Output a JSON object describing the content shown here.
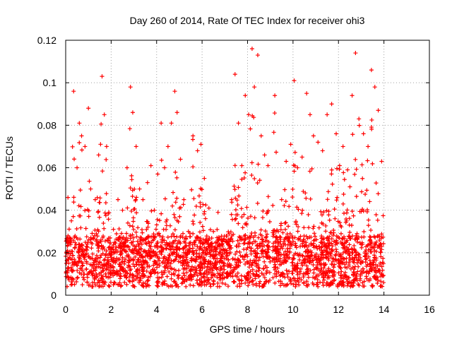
{
  "chart_data": {
    "type": "scatter",
    "title": "Day 260 of 2014, Rate Of TEC Index for receiver ohi3",
    "xlabel": "GPS time / hours",
    "ylabel": "ROTI / TECUs",
    "xlim": [
      0,
      16
    ],
    "ylim": [
      0,
      0.12
    ],
    "xticks": [
      0,
      2,
      4,
      6,
      8,
      10,
      12,
      14,
      16
    ],
    "yticks": [
      0,
      0.02,
      0.04,
      0.06,
      0.08,
      0.1,
      0.12
    ],
    "ytick_labels": [
      "0",
      "0.02",
      "0.04",
      "0.06",
      "0.08",
      "0.1",
      "0.12"
    ],
    "grid": true,
    "marker": "+",
    "marker_color": "#ff0000",
    "data_gap_hours": [
      9.0,
      9.1
    ],
    "series": [
      {
        "name": "ROTI",
        "x": [
          0.1,
          0.25,
          0.35,
          0.5,
          0.6,
          0.7,
          0.85,
          1.0,
          1.1,
          1.3,
          1.45,
          1.6,
          1.7,
          1.8,
          1.9,
          2.1,
          2.3,
          2.5,
          2.7,
          2.85,
          2.95,
          3.1,
          3.25,
          3.4,
          3.6,
          3.75,
          3.9,
          4.05,
          4.2,
          4.35,
          4.5,
          4.65,
          4.8,
          4.9,
          5.05,
          5.2,
          5.4,
          5.6,
          5.8,
          5.95,
          6.1,
          6.3,
          6.5,
          6.7,
          6.9,
          7.1,
          7.3,
          7.45,
          7.6,
          7.75,
          7.9,
          8.05,
          8.2,
          8.3,
          8.45,
          8.6,
          8.75,
          8.9,
          9.2,
          9.35,
          9.5,
          9.7,
          9.9,
          10.05,
          10.2,
          10.4,
          10.6,
          10.75,
          10.9,
          11.1,
          11.3,
          11.5,
          11.7,
          11.9,
          12.05,
          12.2,
          12.4,
          12.6,
          12.75,
          12.9,
          13.1,
          13.3,
          13.45,
          13.6,
          13.75,
          13.9
        ],
        "y": [
          0.046,
          0.035,
          0.096,
          0.06,
          0.081,
          0.075,
          0.07,
          0.088,
          0.05,
          0.045,
          0.066,
          0.103,
          0.085,
          0.07,
          0.039,
          0.031,
          0.045,
          0.04,
          0.06,
          0.098,
          0.086,
          0.07,
          0.05,
          0.045,
          0.053,
          0.061,
          0.04,
          0.057,
          0.081,
          0.06,
          0.07,
          0.081,
          0.096,
          0.086,
          0.064,
          0.045,
          0.03,
          0.075,
          0.068,
          0.071,
          0.055,
          0.041,
          0.03,
          0.039,
          0.021,
          0.025,
          0.045,
          0.104,
          0.081,
          0.061,
          0.094,
          0.085,
          0.116,
          0.098,
          0.113,
          0.075,
          0.066,
          0.061,
          0.094,
          0.03,
          0.045,
          0.063,
          0.071,
          0.101,
          0.06,
          0.065,
          0.095,
          0.085,
          0.075,
          0.072,
          0.068,
          0.085,
          0.09,
          0.076,
          0.061,
          0.07,
          0.059,
          0.094,
          0.114,
          0.083,
          0.076,
          0.07,
          0.106,
          0.098,
          0.087,
          0.063
        ]
      }
    ]
  }
}
